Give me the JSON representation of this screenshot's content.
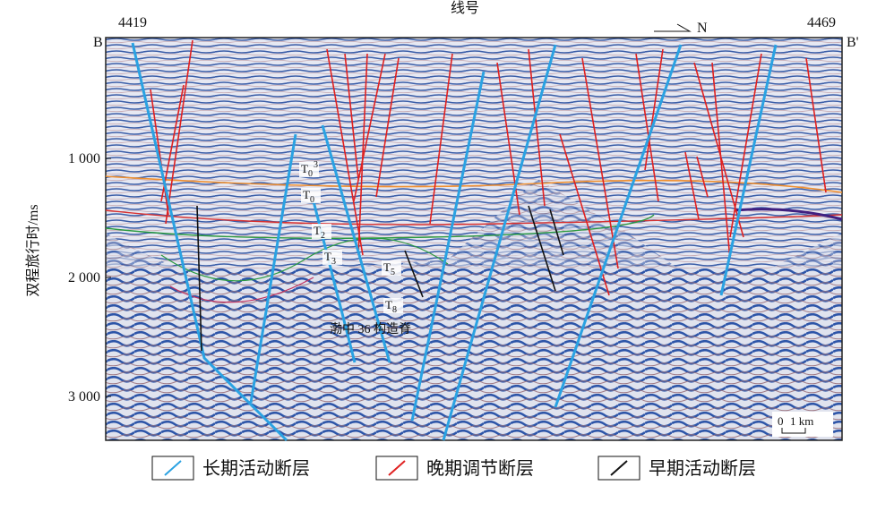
{
  "header": {
    "title": "线号",
    "left_line": "4419",
    "right_line": "4469",
    "left_end": "B",
    "right_end": "B'",
    "north": "N"
  },
  "axis": {
    "label": "双程旅行时/ms",
    "ticks": [
      "1 000",
      "2 000",
      "3 000"
    ]
  },
  "horizons": [
    {
      "base": "T",
      "sub": "0",
      "sup": "3"
    },
    {
      "base": "T",
      "sub": "0"
    },
    {
      "base": "T",
      "sub": "2"
    },
    {
      "base": "T",
      "sub": "3"
    },
    {
      "base": "T",
      "sub": "5"
    },
    {
      "base": "T",
      "sub": "8"
    }
  ],
  "annotation": "渤中 36 构造脊",
  "scale": {
    "zero": "0",
    "length": "1 km"
  },
  "legend": [
    "长期活动断层",
    "晚期调节断层",
    "早期活动断层"
  ]
}
